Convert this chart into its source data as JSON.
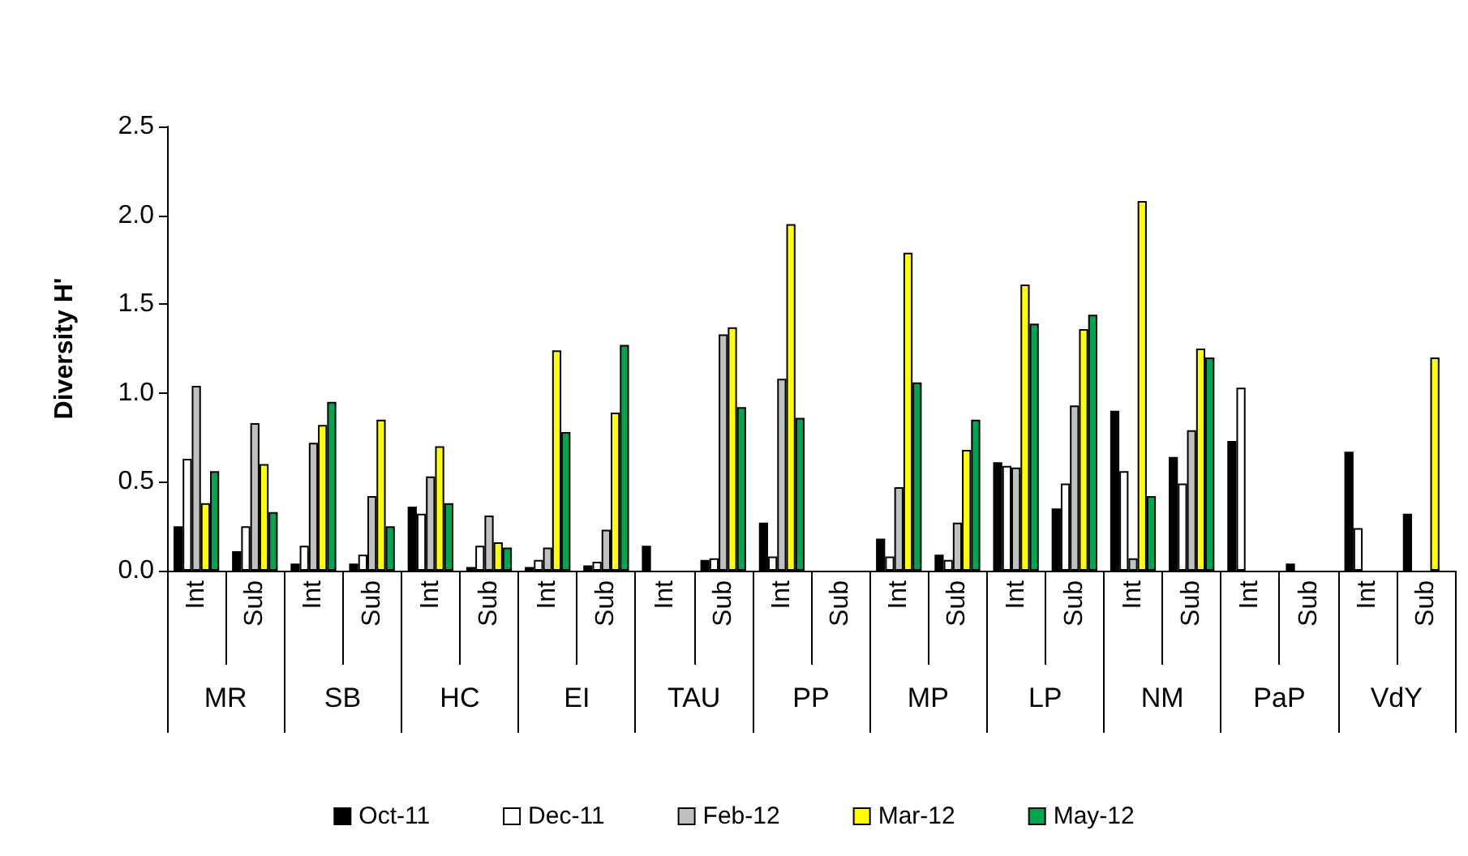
{
  "chart_data": {
    "type": "bar",
    "ylabel": "Diversity H'",
    "categories": [
      "Int",
      "Sub",
      "Int",
      "Sub",
      "Int",
      "Sub",
      "Int",
      "Sub",
      "Int",
      "Sub",
      "Int",
      "Sub",
      "Int",
      "Sub",
      "Int",
      "Sub",
      "Int",
      "Sub",
      "Int",
      "Sub",
      "Int",
      "Sub"
    ],
    "annotations": [
      "MR",
      "SB",
      "HC",
      "EI",
      "TAU",
      "PP",
      "MP",
      "LP",
      "NM",
      "PaP",
      "VdY"
    ],
    "series": [
      {
        "name": "Oct-11",
        "color": "#000000",
        "values": [
          0.25,
          0.11,
          0.04,
          0.04,
          0.36,
          0.02,
          0.02,
          0.03,
          0.14,
          0.06,
          0.27,
          null,
          0.18,
          0.09,
          0.61,
          0.35,
          0.9,
          0.64,
          0.73,
          0.04,
          0.67,
          0.32
        ]
      },
      {
        "name": "Dec-11",
        "color": "#ffffff",
        "values": [
          0.63,
          0.25,
          0.14,
          0.09,
          0.32,
          0.14,
          0.06,
          0.05,
          null,
          0.07,
          0.08,
          null,
          0.08,
          0.06,
          0.59,
          0.49,
          0.56,
          0.49,
          1.03,
          null,
          0.24,
          null
        ]
      },
      {
        "name": "Feb-12",
        "color": "#c0c0c0",
        "values": [
          1.04,
          0.83,
          0.72,
          0.42,
          0.53,
          0.31,
          0.13,
          0.23,
          null,
          1.33,
          1.08,
          null,
          0.47,
          0.27,
          0.58,
          0.93,
          0.07,
          0.79,
          null,
          null,
          null,
          null
        ]
      },
      {
        "name": "Mar-12",
        "color": "#ffff00",
        "values": [
          0.38,
          0.6,
          0.82,
          0.85,
          0.7,
          0.16,
          1.24,
          0.89,
          null,
          1.37,
          1.95,
          null,
          1.79,
          0.68,
          1.61,
          1.36,
          2.08,
          1.25,
          null,
          null,
          null,
          1.2
        ]
      },
      {
        "name": "May-12",
        "color": "#00a550",
        "values": [
          0.56,
          0.33,
          0.95,
          0.25,
          0.38,
          0.13,
          0.78,
          1.27,
          null,
          0.92,
          0.86,
          null,
          1.06,
          0.85,
          1.39,
          1.44,
          0.42,
          1.2,
          null,
          null,
          null,
          null
        ]
      }
    ],
    "ylim": [
      0,
      2.5
    ],
    "yticks": [
      {
        "value": 0,
        "label": "0.0"
      },
      {
        "value": 0.5,
        "label": "0.5"
      },
      {
        "value": 1,
        "label": "1.0"
      },
      {
        "value": 1.5,
        "label": "1.5"
      },
      {
        "value": 2,
        "label": "2.0"
      },
      {
        "value": 2.5,
        "label": "2.5"
      }
    ],
    "grid": false,
    "legend": "bottom"
  }
}
